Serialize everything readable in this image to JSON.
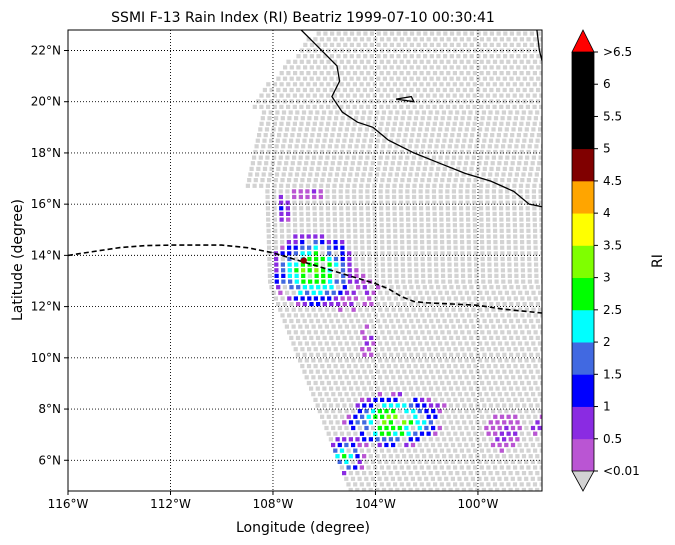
{
  "chart_data": {
    "type": "heatmap",
    "title": "SSMI F-13 Rain Index (RI) Beatriz 1999-07-10 00:30:41",
    "xlabel": "Longitude (degree)",
    "ylabel": "Latitude (degree)",
    "xlim": [
      -116,
      -97.5
    ],
    "ylim": [
      4.8,
      22.8
    ],
    "x_ticks": [
      {
        "value": -116,
        "label": "116°W"
      },
      {
        "value": -112,
        "label": "112°W"
      },
      {
        "value": -108,
        "label": "108°W"
      },
      {
        "value": -104,
        "label": "104°W"
      },
      {
        "value": -100,
        "label": "100°W"
      }
    ],
    "y_ticks": [
      {
        "value": 6,
        "label": "6°N"
      },
      {
        "value": 8,
        "label": "8°N"
      },
      {
        "value": 10,
        "label": "10°N"
      },
      {
        "value": 12,
        "label": "12°N"
      },
      {
        "value": 14,
        "label": "14°N"
      },
      {
        "value": 16,
        "label": "16°N"
      },
      {
        "value": 18,
        "label": "18°N"
      },
      {
        "value": 20,
        "label": "20°N"
      },
      {
        "value": 22,
        "label": "22°N"
      }
    ],
    "grid": "dotted",
    "colorbar": {
      "label": "RI",
      "bounds": [
        0.01,
        0.5,
        1,
        1.5,
        2,
        2.5,
        3,
        3.5,
        4,
        4.5,
        5,
        5.5,
        6,
        6.5
      ],
      "tick_labels": [
        "<0.01",
        "0.5",
        "1",
        "1.5",
        "2",
        "2.5",
        "3",
        "3.5",
        "4",
        "4.5",
        "5",
        "5.5",
        "6",
        ">6.5"
      ],
      "colors": [
        "#ba55d3",
        "#8a2be2",
        "#0000ff",
        "#4169e1",
        "#00ffff",
        "#00ff00",
        "#7fff00",
        "#ffff00",
        "#ffa500",
        "#800000",
        "#000000",
        "#000000",
        "#000000"
      ],
      "under_color": "#d3d3d3",
      "over_color": "#ff0000"
    },
    "swath_color": "#d3d3d3",
    "storm_center": {
      "lon": -106.8,
      "lat": 13.8,
      "color": "#8b0000"
    },
    "rain_clusters": [
      {
        "lon": -106.5,
        "lat": 13.5,
        "dlon": 1.7,
        "dlat": 1.5,
        "peak": 2.9
      },
      {
        "lon": -107.7,
        "lat": 15.9,
        "dlon": 0.3,
        "dlat": 0.7,
        "peak": 1.2
      },
      {
        "lon": -106.7,
        "lat": 16.5,
        "dlon": 0.7,
        "dlat": 0.3,
        "peak": 0.5
      },
      {
        "lon": -105.2,
        "lat": 12.7,
        "dlon": 1.3,
        "dlat": 0.8,
        "peak": 0.6
      },
      {
        "lon": -103.4,
        "lat": 7.6,
        "dlon": 1.9,
        "dlat": 1.1,
        "peak": 3.1
      },
      {
        "lon": -105.3,
        "lat": 6.2,
        "dlon": 0.8,
        "dlat": 0.8,
        "peak": 2.3
      },
      {
        "lon": -104.4,
        "lat": 10.7,
        "dlon": 0.3,
        "dlat": 0.9,
        "peak": 0.5
      },
      {
        "lon": -99.0,
        "lat": 7.2,
        "dlon": 0.8,
        "dlat": 0.8,
        "peak": 0.55
      },
      {
        "lon": -97.8,
        "lat": 7.5,
        "dlon": 0.3,
        "dlat": 0.6,
        "peak": 0.5
      },
      {
        "lon": -101.8,
        "lat": 8.2,
        "dlon": 0.5,
        "dlat": 0.3,
        "peak": 0.55
      }
    ],
    "coastline": [
      [
        -106.9,
        22.8
      ],
      [
        -106.5,
        22.4
      ],
      [
        -106.0,
        21.9
      ],
      [
        -105.5,
        21.4
      ],
      [
        -105.4,
        20.8
      ],
      [
        -105.7,
        20.2
      ],
      [
        -105.3,
        19.6
      ],
      [
        -104.7,
        19.2
      ],
      [
        -104.1,
        19.0
      ],
      [
        -103.5,
        18.5
      ],
      [
        -102.5,
        18.0
      ],
      [
        -101.5,
        17.6
      ],
      [
        -100.5,
        17.2
      ],
      [
        -99.5,
        16.9
      ],
      [
        -98.6,
        16.5
      ],
      [
        -98.0,
        16.0
      ],
      [
        -97.5,
        15.9
      ]
    ],
    "coastline_top": [
      [
        -97.7,
        22.8
      ],
      [
        -97.6,
        22.0
      ],
      [
        -97.5,
        21.6
      ]
    ],
    "island": [
      [
        -103.2,
        20.1
      ],
      [
        -102.6,
        20.2
      ],
      [
        -102.5,
        20.0
      ],
      [
        -103.2,
        20.1
      ]
    ],
    "track": [
      [
        -116,
        14.0
      ],
      [
        -115,
        14.15
      ],
      [
        -114,
        14.3
      ],
      [
        -113,
        14.38
      ],
      [
        -112,
        14.4
      ],
      [
        -111,
        14.4
      ],
      [
        -110,
        14.4
      ],
      [
        -109,
        14.3
      ],
      [
        -108,
        14.1
      ],
      [
        -107,
        13.8
      ],
      [
        -106,
        13.5
      ],
      [
        -105,
        13.2
      ],
      [
        -104,
        12.9
      ],
      [
        -103.5,
        12.7
      ],
      [
        -103,
        12.4
      ],
      [
        -102.5,
        12.2
      ],
      [
        -102,
        12.15
      ],
      [
        -101,
        12.1
      ],
      [
        -100,
        12.05
      ],
      [
        -99,
        11.9
      ],
      [
        -98,
        11.8
      ],
      [
        -97.5,
        11.75
      ]
    ]
  }
}
